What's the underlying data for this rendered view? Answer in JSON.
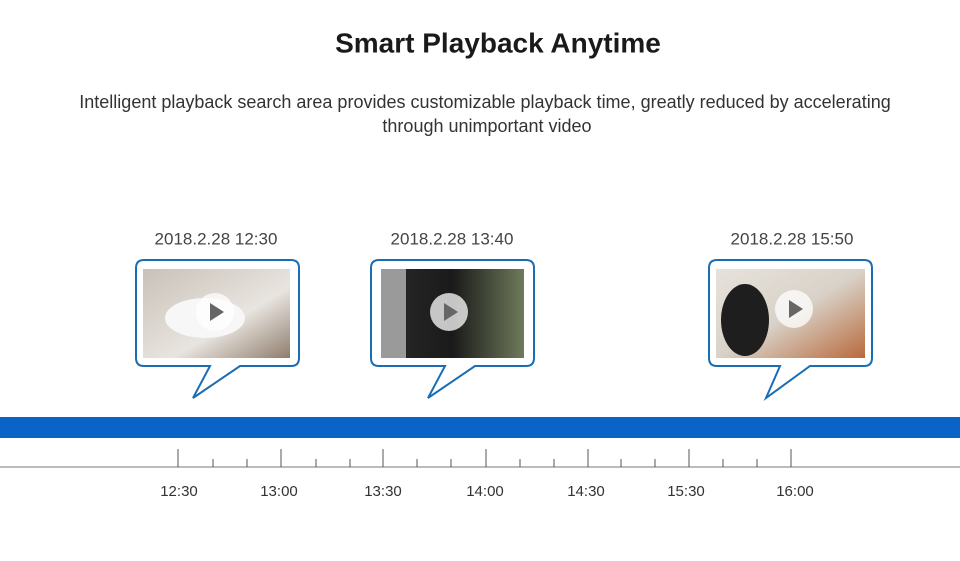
{
  "header": {
    "title": "Smart Playback Anytime",
    "subtitle_lines": [
      "Intelligent playback search area provides customizable playback time, greatly reduced by accelerating",
      "through unimportant video"
    ]
  },
  "clips": [
    {
      "timestamp": "2018.2.28 12:30"
    },
    {
      "timestamp": "2018.2.28 13:40"
    },
    {
      "timestamp": "2018.2.28 15:50"
    }
  ],
  "timeline": {
    "labels": [
      "12:30",
      "13:00",
      "13:30",
      "14:00",
      "14:30",
      "15:30",
      "16:00"
    ]
  }
}
